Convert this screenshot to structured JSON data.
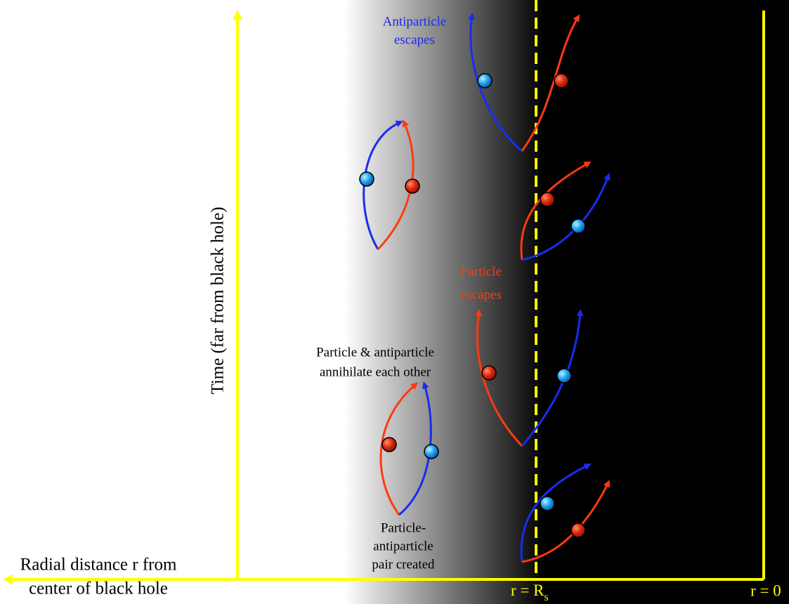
{
  "labels": {
    "antiparticle_escapes": [
      "Antiparticle",
      "escapes"
    ],
    "particle_escapes": [
      "Particle",
      "escapes"
    ],
    "annihilate": [
      "Particle & antiparticle",
      "annihilate each other"
    ],
    "pair_created": [
      "Particle-",
      "antiparticle",
      "pair created"
    ]
  },
  "axes": {
    "time": "Time (far from black hole)",
    "radial": [
      "Radial distance r from",
      "center of black hole"
    ],
    "horizon": {
      "main": "r = R",
      "subscript": "s"
    },
    "center": "r = 0"
  }
}
